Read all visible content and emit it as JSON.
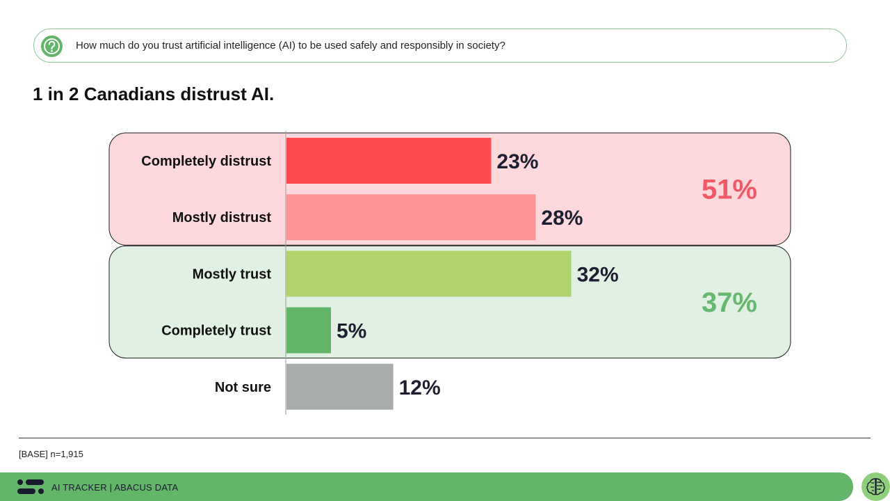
{
  "question": "How much do you trust artificial intelligence (AI) to be used safely and responsibly in society?",
  "headline": "1 in 2 Canadians distrust AI.",
  "footer": {
    "base": "[BASE] n=1,915",
    "brand": "AI TRACKER | ABACUS DATA"
  },
  "colors": {
    "accent_green": "#63b56a",
    "distrust_group_bg": "#fdd9dd",
    "trust_group_bg": "#e0f0e2",
    "distrust_total": "#f05a66",
    "trust_total": "#66b86e"
  },
  "chart_data": {
    "type": "bar",
    "orientation": "horizontal",
    "categories": [
      "Completely distrust",
      "Mostly distrust",
      "Mostly trust",
      "Completely trust",
      "Not sure"
    ],
    "values": [
      23,
      28,
      32,
      5,
      12
    ],
    "value_labels": [
      "23%",
      "28%",
      "32%",
      "5%",
      "12%"
    ],
    "bar_colors": [
      "#ff4a52",
      "#ff9496",
      "#afd46b",
      "#62b567",
      "#a9acad"
    ],
    "xlim": [
      0,
      50
    ],
    "groups": [
      {
        "label": "51%",
        "value": 51,
        "categories": [
          "Completely distrust",
          "Mostly distrust"
        ]
      },
      {
        "label": "37%",
        "value": 37,
        "categories": [
          "Mostly trust",
          "Completely trust"
        ]
      }
    ]
  }
}
